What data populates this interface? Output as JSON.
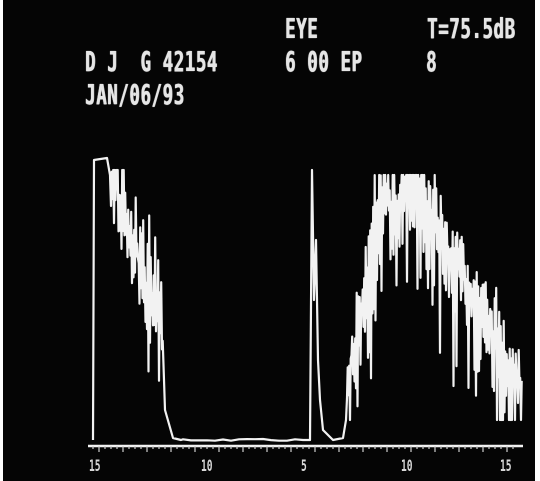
{
  "header": {
    "eye_label": "EYE",
    "level": "T=75.5dB",
    "patient_id": "D J  G 42154",
    "mode": "6 00 EP",
    "channel": "8",
    "date": "JAN/06/93"
  },
  "axis": {
    "ticks": [
      "15",
      "10",
      "5",
      "10",
      "15"
    ]
  },
  "colors": {
    "screen": "#050505",
    "trace": "#f2f2f2",
    "text": "#e6e6e6"
  }
}
